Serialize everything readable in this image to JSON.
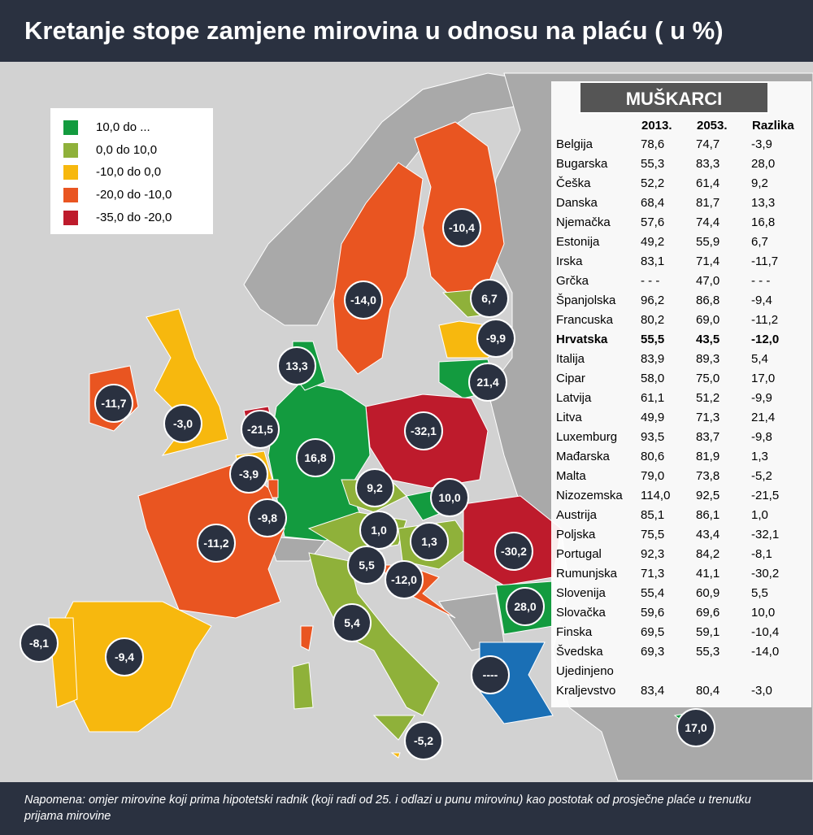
{
  "header": {
    "title": "Kretanje stope zamjene mirovina u odnosu na plaću ( u %)"
  },
  "legend": [
    {
      "label": "10,0 do ...",
      "color": "#139b3f"
    },
    {
      "label": "0,0 do 10,0",
      "color": "#8fb13a"
    },
    {
      "label": "-10,0 do 0,0",
      "color": "#f7b80e"
    },
    {
      "label": "-20,0 do -10,0",
      "color": "#e95521"
    },
    {
      "label": "-35,0 do -20,0",
      "color": "#be1b2c"
    }
  ],
  "map_labels": [
    "-10,4",
    "-14,0",
    "6,7",
    "-9,9",
    "13,3",
    "21,4",
    "-11,7",
    "-3,0",
    "-21,5",
    "-32,1",
    "16,8",
    "-3,9",
    "9,2",
    "10,0",
    "-9,8",
    "1,0",
    "1,3",
    "-11,2",
    "-30,2",
    "5,5",
    "-12,0",
    "28,0",
    "5,4",
    "-8,1",
    "-9,4",
    "----",
    "-5,2",
    "17,0"
  ],
  "table": {
    "title": "MUŠKARCI",
    "columns": [
      "2013.",
      "2053.",
      "Razlika"
    ],
    "rows": [
      [
        "Belgija",
        "78,6",
        "74,7",
        "-3,9"
      ],
      [
        "Bugarska",
        "55,3",
        "83,3",
        "28,0"
      ],
      [
        "Češka",
        "52,2",
        "61,4",
        "9,2"
      ],
      [
        "Danska",
        "68,4",
        "81,7",
        "13,3"
      ],
      [
        "Njemačka",
        "57,6",
        "74,4",
        "16,8"
      ],
      [
        "Estonija",
        "49,2",
        "55,9",
        "6,7"
      ],
      [
        "Irska",
        "83,1",
        "71,4",
        "-11,7"
      ],
      [
        "Grčka",
        "- - -",
        "47,0",
        "- - -"
      ],
      [
        "Španjolska",
        "96,2",
        "86,8",
        "-9,4"
      ],
      [
        "Francuska",
        "80,2",
        "69,0",
        "-11,2"
      ],
      [
        "Hrvatska",
        "55,5",
        "43,5",
        "-12,0"
      ],
      [
        "Italija",
        "83,9",
        "89,3",
        "5,4"
      ],
      [
        "Cipar",
        "58,0",
        "75,0",
        "17,0"
      ],
      [
        "Latvija",
        "61,1",
        "51,2",
        "-9,9"
      ],
      [
        "Litva",
        "49,9",
        "71,3",
        "21,4"
      ],
      [
        "Luxemburg",
        "93,5",
        "83,7",
        "-9,8"
      ],
      [
        "Mađarska",
        "80,6",
        "81,9",
        "1,3"
      ],
      [
        "Malta",
        "79,0",
        "73,8",
        "-5,2"
      ],
      [
        "Nizozemska",
        "114,0",
        "92,5",
        "-21,5"
      ],
      [
        "Austrija",
        "85,1",
        "86,1",
        "1,0"
      ],
      [
        "Poljska",
        "75,5",
        "43,4",
        "-32,1"
      ],
      [
        "Portugal",
        "92,3",
        "84,2",
        "-8,1"
      ],
      [
        "Rumunjska",
        "71,3",
        "41,1",
        "-30,2"
      ],
      [
        "Slovenija",
        "55,4",
        "60,9",
        "5,5"
      ],
      [
        "Slovačka",
        "59,6",
        "69,6",
        "10,0"
      ],
      [
        "Finska",
        "69,5",
        "59,1",
        "-10,4"
      ],
      [
        "Švedska",
        "69,3",
        "55,3",
        "-14,0"
      ],
      [
        "Ujedinjeno Kraljevstvo",
        "83,4",
        "80,4",
        "-3,0"
      ]
    ]
  },
  "footer": {
    "note": "Napomena: omjer mirovine koji prima hipotetski radnik (koji radi od 25. i odlazi u punu mirovinu) kao postotak od prosječne plaće u trenutku prijama mirovine"
  }
}
